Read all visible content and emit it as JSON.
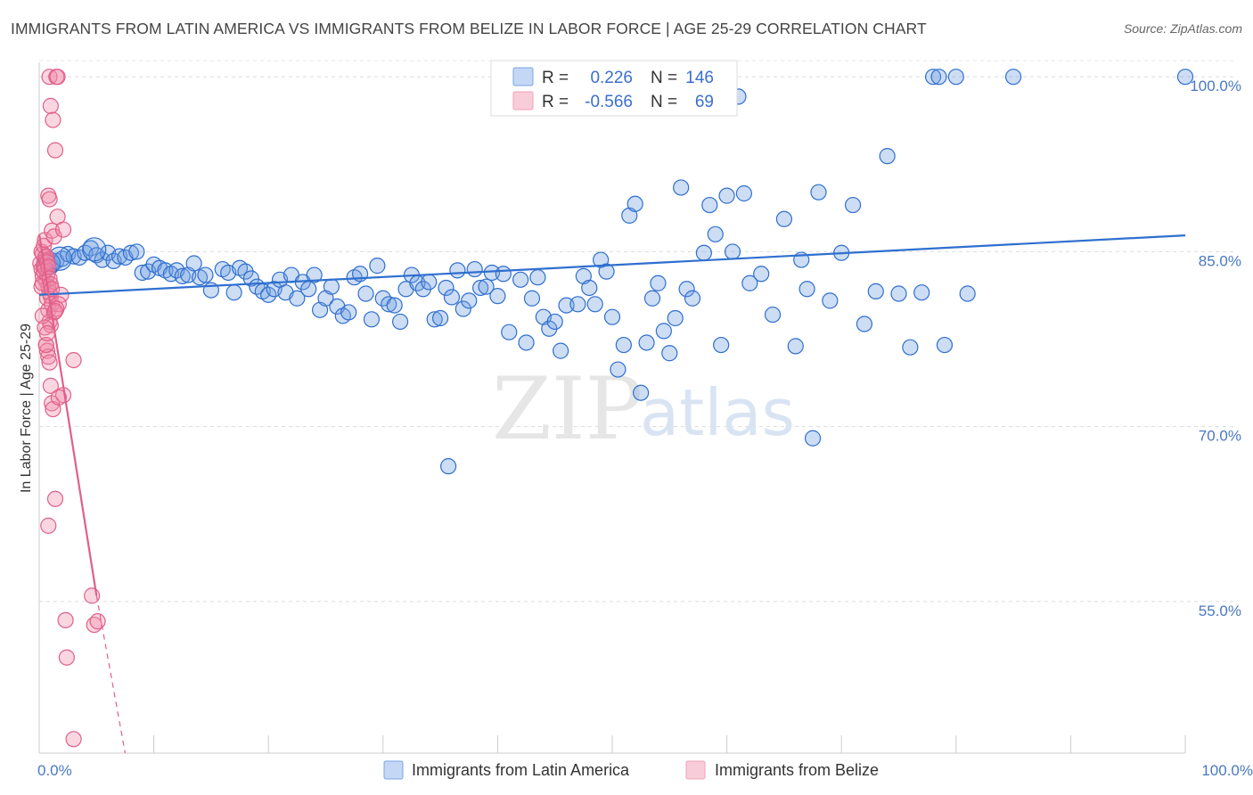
{
  "title": "IMMIGRANTS FROM LATIN AMERICA VS IMMIGRANTS FROM BELIZE IN LABOR FORCE | AGE 25-29 CORRELATION CHART",
  "source": "Source: ZipAtlas.com",
  "watermark": {
    "zip": "ZIP",
    "atlas": "atlas"
  },
  "colors": {
    "blue": "#6f9fe0",
    "blue_line": "#2f6fcf",
    "pink": "#f08aaa",
    "pink_line": "#e0608a"
  },
  "legend": {
    "r_label": "R =",
    "n_label": "N =",
    "blue": {
      "r": "0.226",
      "n": "146"
    },
    "pink": {
      "r": "-0.566",
      "n": "69"
    }
  },
  "chart_data": {
    "type": "scatter",
    "xlabel": "",
    "ylabel": "In Labor Force | Age 25-29",
    "xlim": [
      0,
      100
    ],
    "ylim": [
      42,
      102
    ],
    "x_tick_labels": [
      "0.0%",
      "100.0%"
    ],
    "y_ticks": [
      55,
      70,
      85,
      100
    ],
    "y_tick_labels": [
      "55.0%",
      "70.0%",
      "85.0%",
      "100.0%"
    ],
    "grid": true,
    "legend_position": "top-center",
    "series": [
      {
        "name": "Immigrants from Latin America",
        "color": "#6f9fe0",
        "trend": {
          "x": [
            0,
            100
          ],
          "y": [
            81.3,
            86.4
          ]
        },
        "points": [
          [
            1.0,
            83.8
          ],
          [
            1.2,
            84.0
          ],
          [
            1.5,
            84.2
          ],
          [
            2.0,
            84.4
          ],
          [
            2.5,
            84.8
          ],
          [
            3.0,
            84.6
          ],
          [
            3.5,
            84.5
          ],
          [
            4.0,
            84.9
          ],
          [
            4.5,
            85.3
          ],
          [
            5.0,
            84.7
          ],
          [
            5.5,
            84.3
          ],
          [
            6.0,
            84.9
          ],
          [
            6.5,
            84.2
          ],
          [
            7.0,
            84.6
          ],
          [
            7.5,
            84.5
          ],
          [
            8.0,
            84.9
          ],
          [
            8.5,
            85.0
          ],
          [
            9.0,
            83.2
          ],
          [
            9.5,
            83.3
          ],
          [
            10.0,
            83.9
          ],
          [
            10.5,
            83.6
          ],
          [
            11.0,
            83.4
          ],
          [
            11.5,
            83.1
          ],
          [
            12.0,
            83.4
          ],
          [
            12.5,
            82.9
          ],
          [
            13.0,
            83.0
          ],
          [
            13.5,
            84.0
          ],
          [
            14.0,
            82.8
          ],
          [
            14.5,
            83.0
          ],
          [
            15.0,
            81.7
          ],
          [
            16.0,
            83.5
          ],
          [
            16.5,
            83.2
          ],
          [
            17.0,
            81.5
          ],
          [
            17.5,
            83.6
          ],
          [
            18.0,
            83.3
          ],
          [
            18.5,
            82.7
          ],
          [
            19.0,
            82.0
          ],
          [
            19.5,
            81.6
          ],
          [
            20.0,
            81.3
          ],
          [
            20.5,
            81.8
          ],
          [
            21.0,
            82.6
          ],
          [
            21.5,
            81.5
          ],
          [
            22.0,
            83.0
          ],
          [
            22.5,
            81.0
          ],
          [
            23.0,
            82.4
          ],
          [
            23.5,
            81.8
          ],
          [
            24.0,
            83.0
          ],
          [
            24.5,
            80.0
          ],
          [
            25.0,
            81.0
          ],
          [
            25.5,
            82.0
          ],
          [
            26.0,
            80.3
          ],
          [
            26.5,
            79.5
          ],
          [
            27.0,
            79.8
          ],
          [
            27.5,
            82.8
          ],
          [
            28.0,
            83.1
          ],
          [
            28.5,
            81.4
          ],
          [
            29.0,
            79.2
          ],
          [
            29.5,
            83.8
          ],
          [
            30.0,
            81.0
          ],
          [
            30.5,
            80.5
          ],
          [
            31.0,
            80.4
          ],
          [
            31.5,
            79.0
          ],
          [
            32.0,
            81.8
          ],
          [
            32.5,
            83.0
          ],
          [
            33.0,
            82.3
          ],
          [
            33.5,
            81.8
          ],
          [
            34.0,
            82.4
          ],
          [
            34.5,
            79.2
          ],
          [
            35.0,
            79.3
          ],
          [
            35.5,
            81.9
          ],
          [
            36.0,
            81.1
          ],
          [
            36.5,
            83.4
          ],
          [
            37.0,
            80.1
          ],
          [
            37.5,
            80.8
          ],
          [
            38.0,
            83.5
          ],
          [
            38.5,
            81.9
          ],
          [
            39.0,
            82.0
          ],
          [
            39.5,
            83.2
          ],
          [
            40.0,
            81.2
          ],
          [
            40.5,
            83.1
          ],
          [
            41.0,
            78.1
          ],
          [
            42.0,
            82.6
          ],
          [
            42.5,
            77.2
          ],
          [
            43.0,
            81.0
          ],
          [
            43.5,
            82.8
          ],
          [
            44.0,
            79.4
          ],
          [
            44.5,
            78.4
          ],
          [
            45.0,
            79.0
          ],
          [
            45.5,
            76.5
          ],
          [
            46.0,
            80.4
          ],
          [
            47.0,
            80.5
          ],
          [
            47.5,
            82.9
          ],
          [
            48.0,
            81.9
          ],
          [
            48.5,
            80.5
          ],
          [
            49.0,
            84.3
          ],
          [
            49.5,
            83.3
          ],
          [
            50.0,
            79.4
          ],
          [
            50.5,
            74.9
          ],
          [
            51.0,
            77.0
          ],
          [
            51.5,
            88.1
          ],
          [
            52.0,
            89.1
          ],
          [
            52.5,
            72.9
          ],
          [
            53.0,
            77.2
          ],
          [
            53.5,
            81.0
          ],
          [
            54.0,
            82.3
          ],
          [
            54.5,
            78.2
          ],
          [
            55.0,
            76.3
          ],
          [
            55.5,
            79.3
          ],
          [
            56.0,
            90.5
          ],
          [
            56.5,
            81.8
          ],
          [
            57.0,
            81.0
          ],
          [
            57.5,
            100.0
          ],
          [
            58.0,
            84.9
          ],
          [
            58.5,
            89.0
          ],
          [
            59.0,
            86.5
          ],
          [
            59.5,
            77.0
          ],
          [
            60.0,
            89.8
          ],
          [
            60.5,
            85.0
          ],
          [
            61.0,
            98.3
          ],
          [
            61.5,
            90.0
          ],
          [
            62.0,
            82.3
          ],
          [
            63.0,
            83.1
          ],
          [
            64.0,
            79.6
          ],
          [
            65.0,
            87.8
          ],
          [
            66.0,
            76.9
          ],
          [
            66.5,
            84.3
          ],
          [
            67.0,
            81.8
          ],
          [
            67.5,
            69.0
          ],
          [
            68.0,
            90.1
          ],
          [
            69.0,
            80.8
          ],
          [
            70.0,
            84.9
          ],
          [
            71.0,
            89.0
          ],
          [
            72.0,
            78.8
          ],
          [
            73.0,
            81.6
          ],
          [
            74.0,
            93.2
          ],
          [
            75.0,
            81.4
          ],
          [
            76.0,
            76.8
          ],
          [
            77.0,
            81.5
          ],
          [
            78.0,
            100.0
          ],
          [
            78.5,
            100.0
          ],
          [
            79.0,
            77.0
          ],
          [
            80.0,
            100.0
          ],
          [
            81.0,
            81.4
          ],
          [
            85.0,
            100.0
          ],
          [
            100.0,
            100.0
          ],
          [
            35.7,
            66.6
          ]
        ]
      },
      {
        "name": "Immigrants from Belize",
        "color": "#f08aaa",
        "trend": {
          "x": [
            0,
            5
          ],
          "y": [
            86.5,
            55.5
          ]
        },
        "trend_dashed": {
          "x": [
            5,
            7.5
          ],
          "y": [
            55.5,
            42.0
          ]
        },
        "points": [
          [
            0.1,
            84.0
          ],
          [
            0.2,
            83.5
          ],
          [
            0.3,
            82.9
          ],
          [
            0.4,
            83.8
          ],
          [
            0.5,
            84.5
          ],
          [
            0.6,
            82.5
          ],
          [
            0.7,
            81.0
          ],
          [
            0.8,
            80.0
          ],
          [
            0.9,
            79.0
          ],
          [
            1.0,
            78.7
          ],
          [
            0.2,
            85.0
          ],
          [
            0.3,
            84.8
          ],
          [
            0.4,
            85.5
          ],
          [
            0.5,
            86.0
          ],
          [
            0.6,
            84.2
          ],
          [
            0.7,
            83.0
          ],
          [
            0.8,
            82.0
          ],
          [
            0.9,
            81.5
          ],
          [
            1.0,
            81.2
          ],
          [
            1.1,
            80.5
          ],
          [
            0.2,
            82.0
          ],
          [
            0.3,
            82.3
          ],
          [
            0.4,
            83.3
          ],
          [
            0.5,
            83.6
          ],
          [
            0.6,
            84.6
          ],
          [
            0.7,
            84.1
          ],
          [
            0.8,
            83.7
          ],
          [
            0.9,
            82.7
          ],
          [
            1.0,
            82.2
          ],
          [
            1.1,
            81.8
          ],
          [
            0.3,
            79.5
          ],
          [
            0.5,
            78.5
          ],
          [
            0.6,
            77.0
          ],
          [
            0.7,
            76.5
          ],
          [
            0.8,
            76.0
          ],
          [
            0.9,
            75.5
          ],
          [
            1.0,
            73.5
          ],
          [
            1.1,
            72.0
          ],
          [
            1.2,
            71.5
          ],
          [
            1.3,
            79.8
          ],
          [
            0.9,
            100.0
          ],
          [
            1.5,
            100.0
          ],
          [
            1.6,
            100.0
          ],
          [
            1.0,
            97.5
          ],
          [
            1.2,
            96.3
          ],
          [
            1.4,
            93.7
          ],
          [
            0.8,
            89.8
          ],
          [
            0.9,
            89.5
          ],
          [
            1.1,
            86.8
          ],
          [
            1.3,
            86.3
          ],
          [
            1.6,
            88.0
          ],
          [
            2.1,
            86.9
          ],
          [
            1.9,
            81.3
          ],
          [
            1.7,
            80.5
          ],
          [
            1.5,
            80.1
          ],
          [
            1.4,
            79.9
          ],
          [
            2.1,
            72.7
          ],
          [
            1.7,
            72.5
          ],
          [
            3.0,
            75.7
          ],
          [
            0.8,
            61.5
          ],
          [
            1.4,
            63.8
          ],
          [
            4.6,
            55.5
          ],
          [
            4.8,
            53.0
          ],
          [
            5.1,
            53.3
          ],
          [
            2.3,
            53.4
          ],
          [
            2.4,
            50.2
          ],
          [
            3.0,
            43.2
          ],
          [
            0.6,
            77.0
          ],
          [
            0.7,
            78.0
          ]
        ]
      }
    ]
  }
}
